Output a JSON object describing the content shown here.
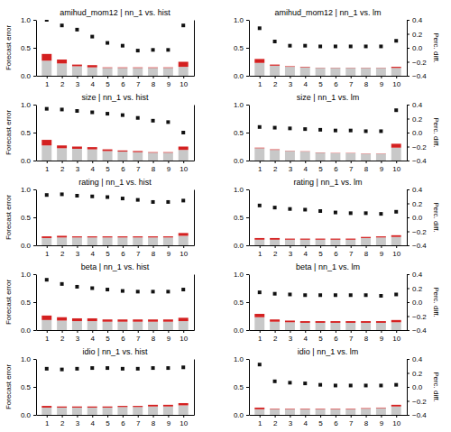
{
  "chart_data": [
    {
      "type": "bar",
      "title": "amihud_mom12 | nn_1 vs. hist",
      "y_label": "Forecast error",
      "stacked": true,
      "grid": false,
      "x": [
        1,
        2,
        3,
        4,
        5,
        6,
        7,
        8,
        9,
        10
      ],
      "xlim": [
        0.3,
        10.7
      ],
      "xticks": [
        1,
        2,
        3,
        4,
        5,
        6,
        7,
        8,
        9,
        10
      ],
      "ylim": [
        0.0,
        1.0
      ],
      "yticks": [
        {
          "value": 0,
          "label": "0.0"
        },
        0.5,
        {
          "value": 1,
          "label": "1.0"
        }
      ],
      "y2lim": [
        -0.4,
        0.4
      ],
      "y2ticks": [],
      "series": [
        {
          "type": "bar",
          "color": "#c8c8c8",
          "values": [
            0.27,
            0.22,
            0.17,
            0.15,
            0.14,
            0.14,
            0.14,
            0.14,
            0.14,
            0.16
          ]
        },
        {
          "type": "bar",
          "color": "#d42020",
          "values": [
            0.12,
            0.07,
            0.03,
            0.04,
            0.01,
            0.01,
            0.01,
            0.01,
            0.01,
            0.09
          ]
        },
        {
          "type": "scatter",
          "axis": "y2",
          "marker": "square",
          "color": "#111111",
          "values": [
            0.4,
            0.32,
            0.26,
            0.16,
            0.07,
            0.03,
            -0.04,
            -0.03,
            -0.03,
            0.32
          ]
        }
      ]
    },
    {
      "type": "bar",
      "title": "amihud_mom12 | nn_1 vs. lm",
      "y2_label": "Perc. diff.",
      "stacked": true,
      "grid": false,
      "x": [
        1,
        2,
        3,
        4,
        5,
        6,
        7,
        8,
        9,
        10
      ],
      "xlim": [
        0.3,
        10.7
      ],
      "xticks": [
        1,
        2,
        3,
        4,
        5,
        6,
        7,
        8,
        9,
        10
      ],
      "ylim": [
        0.0,
        1.0
      ],
      "yticks": [
        {
          "value": 0,
          "label": "0.0"
        },
        0.5,
        {
          "value": 1,
          "label": "1.0"
        }
      ],
      "y2lim": [
        -0.4,
        0.4
      ],
      "y2ticks": [
        0.4,
        0.2,
        {
          "value": 0,
          "label": "0.0"
        },
        {
          "value": -0.2,
          "label": "−0.2"
        },
        {
          "value": -0.4,
          "label": "−0.4"
        }
      ],
      "series": [
        {
          "type": "bar",
          "color": "#c8c8c8",
          "values": [
            0.23,
            0.18,
            0.16,
            0.15,
            0.14,
            0.14,
            0.14,
            0.14,
            0.14,
            0.14
          ]
        },
        {
          "type": "bar",
          "color": "#d42020",
          "values": [
            0.07,
            0.02,
            0.01,
            0.01,
            0.005,
            0.005,
            0.005,
            0.005,
            0.005,
            0.02
          ]
        },
        {
          "type": "scatter",
          "axis": "y2",
          "marker": "square",
          "color": "#111111",
          "values": [
            0.28,
            0.09,
            0.03,
            0.03,
            0.02,
            0.02,
            0.02,
            0.02,
            0.02,
            0.1
          ]
        }
      ]
    },
    {
      "type": "bar",
      "title": "size | nn_1 vs. hist",
      "y_label": "Forecast error",
      "stacked": true,
      "grid": false,
      "x": [
        1,
        2,
        3,
        4,
        5,
        6,
        7,
        8,
        9,
        10
      ],
      "xlim": [
        0.3,
        10.7
      ],
      "xticks": [
        1,
        2,
        3,
        4,
        5,
        6,
        7,
        8,
        9,
        10
      ],
      "ylim": [
        0.0,
        1.0
      ],
      "yticks": [
        {
          "value": 0,
          "label": "0.0"
        },
        0.5,
        {
          "value": 1,
          "label": "1.0"
        }
      ],
      "y2lim": [
        -0.4,
        0.4
      ],
      "y2ticks": [],
      "series": [
        {
          "type": "bar",
          "color": "#c8c8c8",
          "values": [
            0.27,
            0.22,
            0.21,
            0.2,
            0.17,
            0.16,
            0.15,
            0.14,
            0.14,
            0.19
          ]
        },
        {
          "type": "bar",
          "color": "#d42020",
          "values": [
            0.1,
            0.05,
            0.04,
            0.04,
            0.03,
            0.02,
            0.02,
            0.01,
            0.01,
            0.06
          ]
        },
        {
          "type": "scatter",
          "axis": "y2",
          "marker": "square",
          "color": "#111111",
          "values": [
            0.34,
            0.33,
            0.31,
            0.29,
            0.27,
            0.25,
            0.21,
            0.17,
            0.15,
            0
          ]
        }
      ]
    },
    {
      "type": "bar",
      "title": "size | nn_1 vs. lm",
      "y2_label": "Perc. diff.",
      "stacked": true,
      "grid": false,
      "x": [
        1,
        2,
        3,
        4,
        5,
        6,
        7,
        8,
        9,
        10
      ],
      "xlim": [
        0.3,
        10.7
      ],
      "xticks": [
        1,
        2,
        3,
        4,
        5,
        6,
        7,
        8,
        9,
        10
      ],
      "ylim": [
        0.0,
        1.0
      ],
      "yticks": [
        {
          "value": 0,
          "label": "0.0"
        },
        0.5,
        {
          "value": 1,
          "label": "1.0"
        }
      ],
      "y2lim": [
        -0.4,
        0.4
      ],
      "y2ticks": [
        0.4,
        0.2,
        {
          "value": 0,
          "label": "0.0"
        },
        {
          "value": -0.2,
          "label": "−0.2"
        },
        {
          "value": -0.4,
          "label": "−0.4"
        }
      ],
      "series": [
        {
          "type": "bar",
          "color": "#c8c8c8",
          "values": [
            0.22,
            0.19,
            0.17,
            0.16,
            0.14,
            0.13,
            0.13,
            0.12,
            0.12,
            0.23
          ]
        },
        {
          "type": "bar",
          "color": "#d42020",
          "values": [
            0.01,
            0.01,
            0.005,
            0.005,
            0.005,
            0.005,
            0.005,
            0.005,
            0.005,
            0.07
          ]
        },
        {
          "type": "scatter",
          "axis": "y2",
          "marker": "square",
          "color": "#111111",
          "values": [
            0.08,
            0.07,
            0.06,
            0.05,
            0.04,
            0.03,
            0.03,
            0.02,
            0.02,
            0.32
          ]
        }
      ]
    },
    {
      "type": "bar",
      "title": "rating | nn_1 vs. hist",
      "y_label": "Forecast error",
      "stacked": true,
      "grid": false,
      "x": [
        1,
        2,
        3,
        4,
        5,
        6,
        7,
        8,
        9,
        10
      ],
      "xlim": [
        0.3,
        10.7
      ],
      "xticks": [
        1,
        2,
        3,
        4,
        5,
        6,
        7,
        8,
        9,
        10
      ],
      "ylim": [
        0.0,
        1.0
      ],
      "yticks": [
        {
          "value": 0,
          "label": "0.0"
        },
        0.5,
        {
          "value": 1,
          "label": "1.0"
        }
      ],
      "y2lim": [
        -0.4,
        0.4
      ],
      "y2ticks": [],
      "series": [
        {
          "type": "bar",
          "color": "#c8c8c8",
          "values": [
            0.13,
            0.14,
            0.14,
            0.14,
            0.14,
            0.14,
            0.14,
            0.14,
            0.14,
            0.17
          ]
        },
        {
          "type": "bar",
          "color": "#d42020",
          "values": [
            0.03,
            0.03,
            0.02,
            0.02,
            0.02,
            0.02,
            0.02,
            0.02,
            0.02,
            0.05
          ]
        },
        {
          "type": "scatter",
          "axis": "y2",
          "marker": "square",
          "color": "#111111",
          "values": [
            0.32,
            0.33,
            0.31,
            0.3,
            0.29,
            0.27,
            0.25,
            0.22,
            0.22,
            0.24
          ]
        }
      ]
    },
    {
      "type": "bar",
      "title": "rating | nn_1 vs. lm",
      "y2_label": "Perc. diff.",
      "stacked": true,
      "grid": false,
      "x": [
        1,
        2,
        3,
        4,
        5,
        6,
        7,
        8,
        9,
        10
      ],
      "xlim": [
        0.3,
        10.7
      ],
      "xticks": [
        1,
        2,
        3,
        4,
        5,
        6,
        7,
        8,
        9,
        10
      ],
      "ylim": [
        0.0,
        1.0
      ],
      "yticks": [
        {
          "value": 0,
          "label": "0.0"
        },
        0.5,
        {
          "value": 1,
          "label": "1.0"
        }
      ],
      "y2lim": [
        -0.4,
        0.4
      ],
      "y2ticks": [
        0.4,
        0.2,
        {
          "value": 0,
          "label": "0.0"
        },
        {
          "value": -0.2,
          "label": "−0.2"
        },
        {
          "value": -0.4,
          "label": "−0.4"
        }
      ],
      "series": [
        {
          "type": "bar",
          "color": "#c8c8c8",
          "values": [
            0.1,
            0.1,
            0.1,
            0.1,
            0.1,
            0.1,
            0.1,
            0.13,
            0.14,
            0.15
          ]
        },
        {
          "type": "bar",
          "color": "#d42020",
          "values": [
            0.03,
            0.03,
            0.02,
            0.02,
            0.02,
            0.02,
            0.02,
            0.02,
            0.02,
            0.03
          ]
        },
        {
          "type": "scatter",
          "axis": "y2",
          "marker": "square",
          "color": "#111111",
          "values": [
            0.17,
            0.14,
            0.12,
            0.11,
            0.09,
            0.07,
            0.06,
            0.06,
            0.05,
            0.08
          ]
        }
      ]
    },
    {
      "type": "bar",
      "title": "beta | nn_1 vs. hist",
      "y_label": "Forecast error",
      "stacked": true,
      "grid": false,
      "x": [
        1,
        2,
        3,
        4,
        5,
        6,
        7,
        8,
        9,
        10
      ],
      "xlim": [
        0.3,
        10.7
      ],
      "xticks": [
        1,
        2,
        3,
        4,
        5,
        6,
        7,
        8,
        9,
        10
      ],
      "ylim": [
        0.0,
        1.0
      ],
      "yticks": [
        {
          "value": 0,
          "label": "0.0"
        },
        0.5,
        {
          "value": 1,
          "label": "1.0"
        }
      ],
      "y2lim": [
        -0.4,
        0.4
      ],
      "y2ticks": [],
      "series": [
        {
          "type": "bar",
          "color": "#c8c8c8",
          "values": [
            0.18,
            0.17,
            0.16,
            0.16,
            0.15,
            0.15,
            0.15,
            0.15,
            0.15,
            0.16
          ]
        },
        {
          "type": "bar",
          "color": "#d42020",
          "values": [
            0.08,
            0.06,
            0.05,
            0.05,
            0.04,
            0.04,
            0.04,
            0.04,
            0.04,
            0.06
          ]
        },
        {
          "type": "scatter",
          "axis": "y2",
          "marker": "square",
          "color": "#111111",
          "values": [
            0.32,
            0.26,
            0.22,
            0.2,
            0.18,
            0.16,
            0.15,
            0.15,
            0.15,
            0.18
          ]
        }
      ]
    },
    {
      "type": "bar",
      "title": "beta | nn_1 vs. lm",
      "y2_label": "Perc. diff.",
      "stacked": true,
      "grid": false,
      "x": [
        1,
        2,
        3,
        4,
        5,
        6,
        7,
        8,
        9,
        10
      ],
      "xlim": [
        0.3,
        10.7
      ],
      "xticks": [
        1,
        2,
        3,
        4,
        5,
        6,
        7,
        8,
        9,
        10
      ],
      "ylim": [
        0.0,
        1.0
      ],
      "yticks": [
        {
          "value": 0,
          "label": "0.0"
        },
        0.5,
        {
          "value": 1,
          "label": "1.0"
        }
      ],
      "y2lim": [
        -0.4,
        0.4
      ],
      "y2ticks": [
        0.4,
        0.2,
        {
          "value": 0,
          "label": "0.0"
        },
        {
          "value": -0.2,
          "label": "−0.2"
        },
        {
          "value": -0.4,
          "label": "−0.4"
        }
      ],
      "series": [
        {
          "type": "bar",
          "color": "#c8c8c8",
          "values": [
            0.23,
            0.15,
            0.14,
            0.13,
            0.13,
            0.13,
            0.13,
            0.13,
            0.13,
            0.14
          ]
        },
        {
          "type": "bar",
          "color": "#d42020",
          "values": [
            0.06,
            0.04,
            0.03,
            0.03,
            0.03,
            0.03,
            0.03,
            0.03,
            0.03,
            0.04
          ]
        },
        {
          "type": "scatter",
          "axis": "y2",
          "marker": "square",
          "color": "#111111",
          "values": [
            0.14,
            0.12,
            0.11,
            0.1,
            0.1,
            0.1,
            0.1,
            0.1,
            0.09,
            0.11
          ]
        }
      ]
    },
    {
      "type": "bar",
      "title": "idio | nn_1 vs. hist",
      "y_label": "Forecast error",
      "stacked": true,
      "grid": false,
      "x": [
        1,
        2,
        3,
        4,
        5,
        6,
        7,
        8,
        9,
        10
      ],
      "xlim": [
        0.3,
        10.7
      ],
      "xticks": [
        1,
        2,
        3,
        4,
        5,
        6,
        7,
        8,
        9,
        10
      ],
      "ylim": [
        0.0,
        1.0
      ],
      "yticks": [
        {
          "value": 0,
          "label": "0.0"
        },
        0.5,
        {
          "value": 1,
          "label": "1.0"
        }
      ],
      "y2lim": [
        -0.4,
        0.4
      ],
      "y2ticks": [],
      "series": [
        {
          "type": "bar",
          "color": "#c8c8c8",
          "values": [
            0.13,
            0.13,
            0.13,
            0.13,
            0.13,
            0.14,
            0.14,
            0.15,
            0.15,
            0.17
          ]
        },
        {
          "type": "bar",
          "color": "#d42020",
          "values": [
            0.03,
            0.02,
            0.02,
            0.02,
            0.02,
            0.02,
            0.02,
            0.03,
            0.03,
            0.04
          ]
        },
        {
          "type": "scatter",
          "axis": "y2",
          "marker": "square",
          "color": "#111111",
          "values": [
            0.26,
            0.25,
            0.26,
            0.27,
            0.27,
            0.26,
            0.26,
            0.27,
            0.27,
            0.28
          ]
        }
      ]
    },
    {
      "type": "bar",
      "title": "idio | nn_1 vs. lm",
      "y2_label": "Perc. diff.",
      "stacked": true,
      "grid": false,
      "x": [
        1,
        2,
        3,
        4,
        5,
        6,
        7,
        8,
        9,
        10
      ],
      "xlim": [
        0.3,
        10.7
      ],
      "xticks": [
        1,
        2,
        3,
        4,
        5,
        6,
        7,
        8,
        9,
        10
      ],
      "ylim": [
        0.0,
        1.0
      ],
      "yticks": [
        {
          "value": 0,
          "label": "0.0"
        },
        0.5,
        {
          "value": 1,
          "label": "1.0"
        }
      ],
      "y2lim": [
        -0.4,
        0.4
      ],
      "y2ticks": [
        0.4,
        0.2,
        {
          "value": 0,
          "label": "0.0"
        },
        {
          "value": -0.2,
          "label": "−0.2"
        },
        {
          "value": -0.4,
          "label": "−0.4"
        }
      ],
      "series": [
        {
          "type": "bar",
          "color": "#c8c8c8",
          "values": [
            0.1,
            0.1,
            0.1,
            0.1,
            0.1,
            0.1,
            0.1,
            0.11,
            0.12,
            0.15
          ]
        },
        {
          "type": "bar",
          "color": "#d42020",
          "values": [
            0.03,
            0.01,
            0.01,
            0.01,
            0.01,
            0.01,
            0.01,
            0.01,
            0.01,
            0.03
          ]
        },
        {
          "type": "scatter",
          "axis": "y2",
          "marker": "square",
          "color": "#111111",
          "values": [
            0.32,
            0.08,
            0.06,
            0.05,
            0.03,
            0.02,
            0.02,
            0.02,
            0.02,
            0.03
          ]
        }
      ]
    }
  ]
}
